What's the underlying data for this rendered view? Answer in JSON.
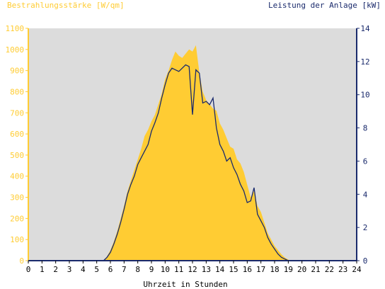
{
  "chart_data": {
    "type": "area",
    "left_axis_label": "Bestrahlungsstärke [W/qm]",
    "right_axis_label": "Leistung der Anlage [kW]",
    "xlabel": "Uhrzeit in Stunden",
    "xlim": [
      0,
      24
    ],
    "ylim_left": [
      0,
      1100
    ],
    "ylim_right": [
      0,
      14
    ],
    "x_ticks": [
      "0",
      "1",
      "2",
      "3",
      "4",
      "5",
      "6",
      "7",
      "8",
      "9",
      "10",
      "11",
      "12",
      "13",
      "14",
      "15",
      "16",
      "17",
      "18",
      "19",
      "20",
      "21",
      "22",
      "23",
      "24"
    ],
    "left_ticks": [
      "0",
      "100",
      "200",
      "300",
      "400",
      "500",
      "600",
      "700",
      "800",
      "900",
      "1000",
      "1100"
    ],
    "right_ticks": [
      "0",
      "2",
      "4",
      "6",
      "8",
      "10",
      "12",
      "14"
    ],
    "grid": false,
    "colors": {
      "left_axis": "#ffcc33",
      "right_axis": "#1a2a6c",
      "area_fill": "#ffcc33",
      "line": "#1a2a6c",
      "plot_bg": "#dcdcdc"
    },
    "series": [
      {
        "axis": "left",
        "type": "area",
        "x": [
          5.5,
          5.75,
          6.0,
          6.25,
          6.5,
          6.75,
          7.0,
          7.25,
          7.5,
          7.75,
          8.0,
          8.25,
          8.5,
          8.75,
          9.0,
          9.25,
          9.5,
          9.75,
          10.0,
          10.25,
          10.5,
          10.75,
          11.0,
          11.25,
          11.5,
          11.75,
          12.0,
          12.25,
          12.5,
          12.75,
          13.0,
          13.25,
          13.5,
          13.75,
          14.0,
          14.25,
          14.5,
          14.75,
          15.0,
          15.25,
          15.5,
          15.75,
          16.0,
          16.25,
          16.5,
          16.75,
          17.0,
          17.25,
          17.5,
          17.75,
          18.0,
          18.25,
          18.5,
          18.75,
          19.0,
          19.25,
          19.5,
          19.75,
          20.0
        ],
        "y": [
          0,
          20,
          50,
          90,
          140,
          200,
          260,
          330,
          380,
          430,
          480,
          530,
          590,
          620,
          660,
          690,
          740,
          790,
          860,
          900,
          950,
          990,
          970,
          960,
          980,
          1000,
          990,
          1020,
          890,
          800,
          760,
          740,
          720,
          710,
          650,
          620,
          580,
          540,
          530,
          480,
          460,
          420,
          360,
          300,
          330,
          260,
          230,
          180,
          130,
          100,
          70,
          50,
          30,
          15,
          5,
          0,
          0,
          0,
          0
        ]
      },
      {
        "axis": "right",
        "type": "line",
        "x": [
          5.5,
          5.75,
          6.0,
          6.25,
          6.5,
          6.75,
          7.0,
          7.25,
          7.5,
          7.75,
          8.0,
          8.25,
          8.5,
          8.75,
          9.0,
          9.25,
          9.5,
          9.75,
          10.0,
          10.25,
          10.5,
          10.75,
          11.0,
          11.25,
          11.5,
          11.75,
          12.0,
          12.25,
          12.5,
          12.75,
          13.0,
          13.25,
          13.5,
          13.75,
          14.0,
          14.25,
          14.5,
          14.75,
          15.0,
          15.25,
          15.5,
          15.75,
          16.0,
          16.25,
          16.5,
          16.75,
          17.0,
          17.25,
          17.5,
          17.75,
          18.0,
          18.25,
          18.5,
          18.75,
          19.0,
          19.25,
          19.5,
          19.75,
          20.0
        ],
        "y": [
          0,
          0.2,
          0.5,
          1.0,
          1.6,
          2.3,
          3.1,
          4.0,
          4.6,
          5.1,
          5.8,
          6.2,
          6.6,
          7.0,
          7.8,
          8.3,
          8.9,
          9.8,
          10.6,
          11.3,
          11.6,
          11.5,
          11.4,
          11.6,
          11.8,
          11.7,
          8.8,
          11.5,
          11.3,
          9.5,
          9.6,
          9.4,
          9.8,
          8.0,
          7.0,
          6.6,
          6.0,
          6.2,
          5.6,
          5.2,
          4.6,
          4.2,
          3.5,
          3.6,
          4.4,
          2.8,
          2.4,
          2.0,
          1.4,
          1.0,
          0.7,
          0.4,
          0.2,
          0.1,
          0,
          0,
          0,
          0,
          0
        ]
      }
    ]
  }
}
